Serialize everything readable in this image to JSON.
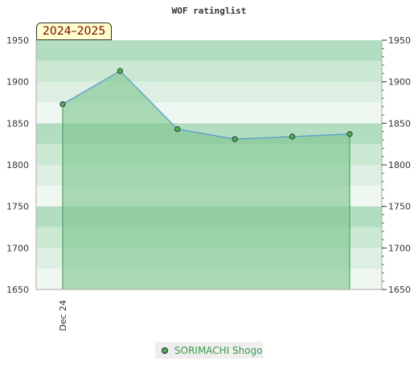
{
  "chart_data": {
    "type": "area",
    "title": "WOF ratinglist",
    "season_label": "2024–2025",
    "x_tick_labels": [
      "Dec 24"
    ],
    "ylim": [
      1650,
      1950
    ],
    "y_ticks": [
      1650,
      1700,
      1750,
      1800,
      1850,
      1900,
      1950
    ],
    "y_tick_labels": [
      "1650",
      "1700",
      "1750",
      "1800",
      "1850",
      "1900",
      "1950"
    ],
    "series": [
      {
        "name": "SORIMACHI Shogo",
        "values": [
          1873,
          1913,
          1843,
          1831,
          1834,
          1837
        ]
      }
    ],
    "legend_position": "bottom",
    "grid": true,
    "colors": {
      "fill": "#7cc48c",
      "line": "#5b9bd5",
      "marker": "#4caf50",
      "band_colors": [
        "#b3ddc1",
        "#cbe8d3",
        "#dcefe2",
        "#eef7f0"
      ]
    }
  }
}
